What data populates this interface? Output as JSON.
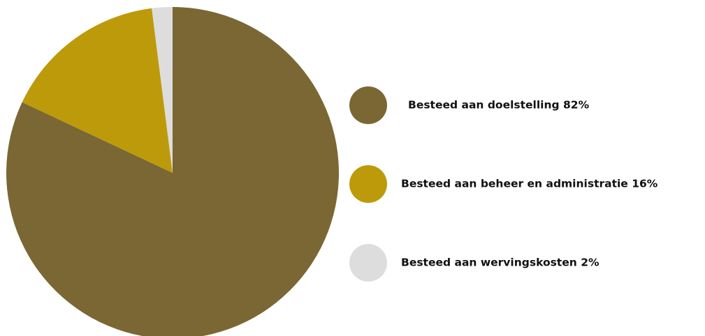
{
  "chart_data": {
    "type": "pie",
    "title": "",
    "slices": [
      {
        "label": "Besteed aan doelstelling 82%",
        "value": 82,
        "color": "#7a6733"
      },
      {
        "label": "Besteed aan beheer en administratie 16%",
        "value": 16,
        "color": "#bd9a0a"
      },
      {
        "label": "Besteed aan wervingskosten 2%",
        "value": 2,
        "color": "#dddddd"
      }
    ],
    "start_angle": "12 o'clock",
    "direction": "clockwise",
    "legend_position": "right"
  }
}
